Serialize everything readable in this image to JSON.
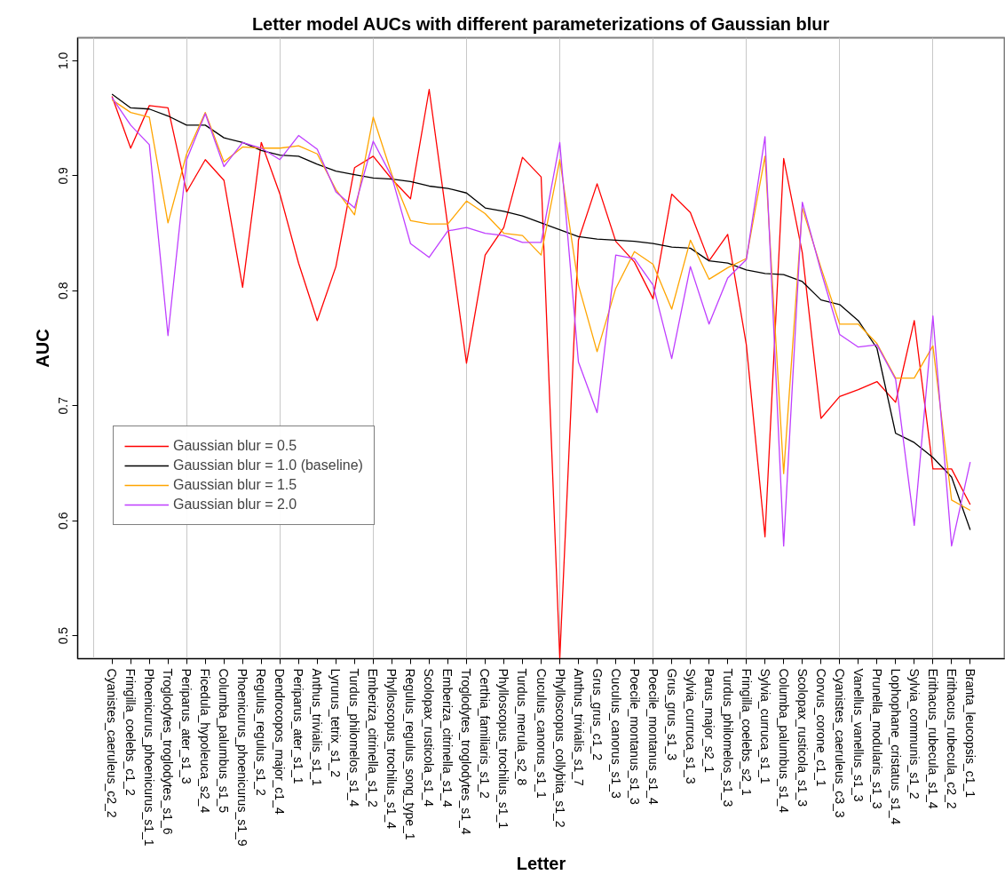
{
  "chart_data": {
    "type": "line",
    "title": "Letter model AUCs with different parameterizations of Gaussian blur",
    "xlabel": "Letter",
    "ylabel": "AUC",
    "categories": [
      "Cyanistes_caeruleus_c2_2",
      "Fringilla_coelebs_c1_2",
      "Phoenicurus_phoenicurus_s1_1",
      "Troglodytes_troglodytes_s1_6",
      "Periparus_ater_s1_3",
      "Ficedula_hypoleuca_s2_4",
      "Columba_palumbus_s1_5",
      "Phoenicurus_phoenicurus_s1_9",
      "Regulus_regulus_s1_2",
      "Dendrocopos_major_c1_4",
      "Periparus_ater_s1_1",
      "Anthus_trivialis_s1_1",
      "Lyrurus_tetrix_s1_2",
      "Turdus_philomelos_s1_4",
      "Emberiza_citrinella_s1_2",
      "Phylloscopus_trochilus_s1_4",
      "Regulus_regulus_song_type_1",
      "Scolopax_rusticola_s1_4",
      "Emberiza_citrinella_s1_4",
      "Troglodytes_troglodytes_s1_4",
      "Certhia_familiaris_s1_2",
      "Phylloscopus_trochilus_s1_1",
      "Turdus_merula_s2_8",
      "Cuculus_canorus_s1_1",
      "Phylloscopus_collybita_s1_2",
      "Anthus_trivialis_s1_7",
      "Grus_grus_c1_2",
      "Cuculus_canorus_s1_3",
      "Poecile_montanus_s1_3",
      "Poecile_montanus_s1_4",
      "Grus_grus_s1_3",
      "Sylvia_curruca_s1_3",
      "Parus_major_s2_1",
      "Turdus_philomelos_s1_3",
      "Fringilla_coelebs_s2_1",
      "Sylvia_curruca_s1_1",
      "Columba_palumbus_s1_4",
      "Scolopax_rusticola_s1_3",
      "Corvus_corone_c1_1",
      "Cyanistes_caeruleus_c3_3",
      "Vanellus_vanellus_s1_3",
      "Prunella_modularis_s1_3",
      "Lophophane_cristatus_s1_4",
      "Sylvia_communis_s1_2",
      "Erithacus_rubecula_s1_4",
      "Erithacus_rubecula_c2_2",
      "Branta_leucopsis_c1_1"
    ],
    "series": [
      {
        "name": "Gaussian blur = 0.5",
        "color": "#ff0000",
        "values": [
          0.969,
          0.924,
          0.961,
          0.959,
          0.886,
          0.914,
          0.896,
          0.803,
          0.929,
          0.884,
          0.824,
          0.774,
          0.821,
          0.907,
          0.917,
          0.897,
          0.88,
          0.975,
          0.856,
          0.737,
          0.831,
          0.855,
          0.916,
          0.899,
          0.48,
          0.844,
          0.893,
          0.843,
          0.825,
          0.793,
          0.884,
          0.868,
          0.826,
          0.849,
          0.753,
          0.586,
          0.915,
          0.833,
          0.689,
          0.708,
          0.714,
          0.721,
          0.703,
          0.774,
          0.645,
          0.645,
          0.614
        ]
      },
      {
        "name": "Gaussian blur = 1.0 (baseline)",
        "color": "#000000",
        "values": [
          0.971,
          0.959,
          0.958,
          0.952,
          0.944,
          0.944,
          0.933,
          0.929,
          0.922,
          0.918,
          0.917,
          0.91,
          0.904,
          0.901,
          0.898,
          0.897,
          0.895,
          0.891,
          0.889,
          0.885,
          0.872,
          0.869,
          0.865,
          0.859,
          0.853,
          0.847,
          0.845,
          0.844,
          0.843,
          0.841,
          0.838,
          0.837,
          0.826,
          0.824,
          0.818,
          0.815,
          0.814,
          0.808,
          0.792,
          0.788,
          0.774,
          0.75,
          0.676,
          0.668,
          0.655,
          0.638,
          0.592
        ]
      },
      {
        "name": "Gaussian blur = 1.5",
        "color": "#ffa500",
        "values": [
          0.966,
          0.955,
          0.951,
          0.859,
          0.919,
          0.955,
          0.912,
          0.925,
          0.924,
          0.924,
          0.926,
          0.919,
          0.888,
          0.866,
          0.951,
          0.901,
          0.861,
          0.858,
          0.858,
          0.878,
          0.867,
          0.85,
          0.848,
          0.831,
          0.914,
          0.805,
          0.747,
          0.802,
          0.834,
          0.823,
          0.784,
          0.844,
          0.81,
          0.82,
          0.828,
          0.917,
          0.641,
          0.872,
          0.82,
          0.771,
          0.771,
          0.754,
          0.724,
          0.724,
          0.752,
          0.618,
          0.609
        ]
      },
      {
        "name": "Gaussian blur = 2.0",
        "color": "#bf3eff",
        "values": [
          0.968,
          0.944,
          0.927,
          0.761,
          0.914,
          0.954,
          0.908,
          0.929,
          0.924,
          0.914,
          0.935,
          0.923,
          0.886,
          0.872,
          0.93,
          0.899,
          0.841,
          0.829,
          0.852,
          0.855,
          0.85,
          0.848,
          0.842,
          0.842,
          0.929,
          0.738,
          0.694,
          0.831,
          0.828,
          0.805,
          0.741,
          0.821,
          0.771,
          0.811,
          0.827,
          0.934,
          0.578,
          0.877,
          0.817,
          0.762,
          0.751,
          0.753,
          0.723,
          0.596,
          0.778,
          0.578,
          0.651
        ]
      }
    ],
    "ylim": [
      0.48,
      1.02
    ],
    "yticks": [
      0.5,
      0.6,
      0.7,
      0.8,
      0.9,
      {
        "value": 1,
        "label": "1.0"
      }
    ],
    "grid": "x",
    "legend": "left",
    "marker": "none",
    "line_style": "solid"
  }
}
